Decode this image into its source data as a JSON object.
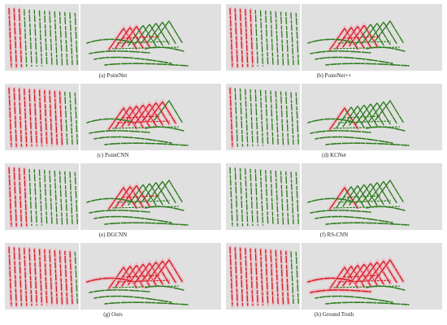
{
  "figure": {
    "colors": {
      "background": "#e0e0e0",
      "panel_divider": "#ffffff",
      "class_green": "#2f7d1f",
      "class_red": "#d51c23",
      "class_pink": "#f2a3b2"
    },
    "panels": [
      {
        "id": "a",
        "label": "(a) PointNet",
        "left_red": 0.18,
        "right_red": 0.24
      },
      {
        "id": "b",
        "label": "(b) PointNet++",
        "left_red": 0.34,
        "right_red": 0.33
      },
      {
        "id": "c",
        "label": "(c) PointCNN",
        "left_red": 0.78,
        "right_red": 0.55
      },
      {
        "id": "d",
        "label": "(d) KCNet",
        "left_red": 0.08,
        "right_red": 0.09
      },
      {
        "id": "e",
        "label": "(e) DGCNN",
        "left_red": 0.28,
        "right_red": 0.2
      },
      {
        "id": "f",
        "label": "(f) RS-CNN",
        "left_red": 0.02,
        "right_red": 0.04
      },
      {
        "id": "g",
        "label": "(g) Ours",
        "left_red": 0.92,
        "right_red": 0.72
      },
      {
        "id": "h",
        "label": "(h) Ground Truth",
        "left_red": 0.88,
        "right_red": 0.76
      }
    ]
  }
}
